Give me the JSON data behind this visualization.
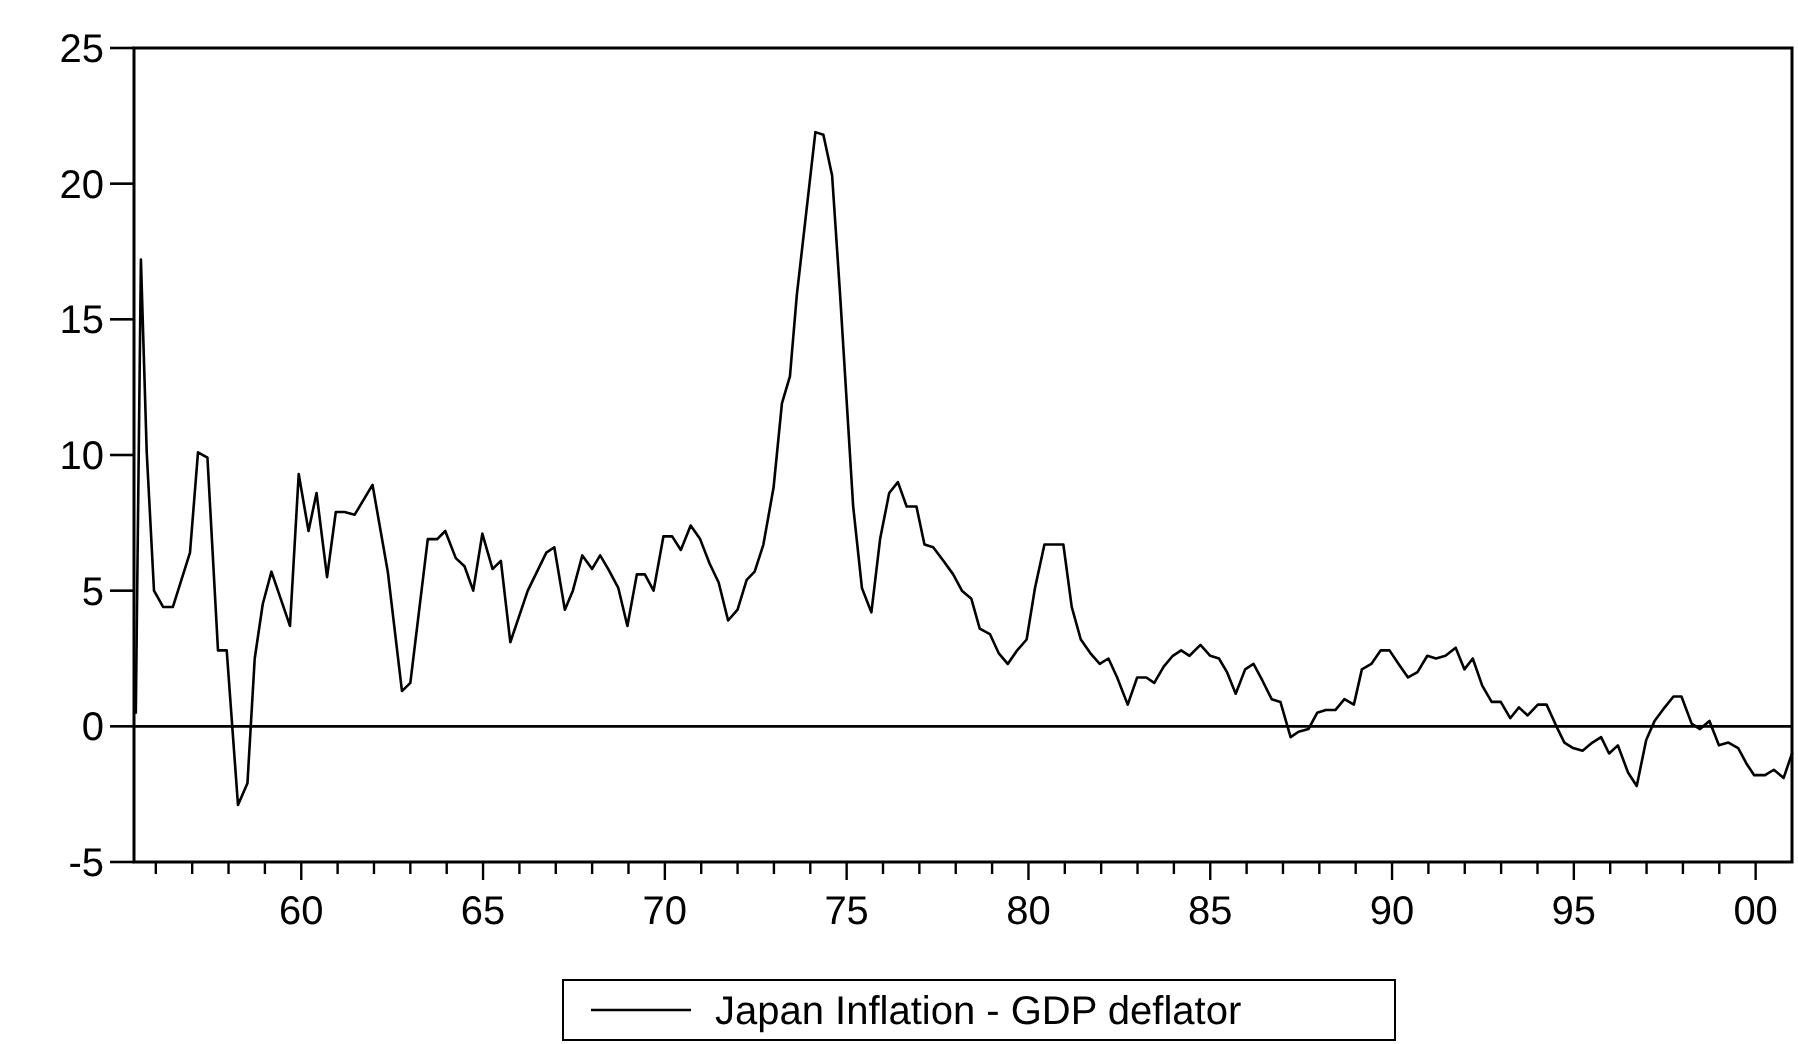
{
  "chart_data": {
    "type": "line",
    "legend": "bottom",
    "grid": false,
    "marker": "none",
    "line_style": "solid",
    "xlim": [
      1955.4,
      2001.0
    ],
    "ylim": [
      -5,
      25
    ],
    "yticks": [
      -5,
      0,
      5,
      10,
      15,
      20,
      25
    ],
    "xticks": [
      {
        "value": 1956,
        "label": null
      },
      {
        "value": 1957,
        "label": null
      },
      {
        "value": 1958,
        "label": null
      },
      {
        "value": 1959,
        "label": null
      },
      {
        "value": 1960,
        "label": "60"
      },
      {
        "value": 1961,
        "label": null
      },
      {
        "value": 1962,
        "label": null
      },
      {
        "value": 1963,
        "label": null
      },
      {
        "value": 1964,
        "label": null
      },
      {
        "value": 1965,
        "label": "65"
      },
      {
        "value": 1966,
        "label": null
      },
      {
        "value": 1967,
        "label": null
      },
      {
        "value": 1968,
        "label": null
      },
      {
        "value": 1969,
        "label": null
      },
      {
        "value": 1970,
        "label": "70"
      },
      {
        "value": 1971,
        "label": null
      },
      {
        "value": 1972,
        "label": null
      },
      {
        "value": 1973,
        "label": null
      },
      {
        "value": 1974,
        "label": null
      },
      {
        "value": 1975,
        "label": "75"
      },
      {
        "value": 1976,
        "label": null
      },
      {
        "value": 1977,
        "label": null
      },
      {
        "value": 1978,
        "label": null
      },
      {
        "value": 1979,
        "label": null
      },
      {
        "value": 1980,
        "label": "80"
      },
      {
        "value": 1981,
        "label": null
      },
      {
        "value": 1982,
        "label": null
      },
      {
        "value": 1983,
        "label": null
      },
      {
        "value": 1984,
        "label": null
      },
      {
        "value": 1985,
        "label": "85"
      },
      {
        "value": 1986,
        "label": null
      },
      {
        "value": 1987,
        "label": null
      },
      {
        "value": 1988,
        "label": null
      },
      {
        "value": 1989,
        "label": null
      },
      {
        "value": 1990,
        "label": "90"
      },
      {
        "value": 1991,
        "label": null
      },
      {
        "value": 1992,
        "label": null
      },
      {
        "value": 1993,
        "label": null
      },
      {
        "value": 1994,
        "label": null
      },
      {
        "value": 1995,
        "label": "95"
      },
      {
        "value": 1996,
        "label": null
      },
      {
        "value": 1997,
        "label": null
      },
      {
        "value": 1998,
        "label": null
      },
      {
        "value": 1999,
        "label": null
      },
      {
        "value": 2000,
        "label": "00"
      }
    ],
    "ref_lines": [
      {
        "axis": "y",
        "value": 0,
        "color": "#000000"
      }
    ],
    "series": [
      {
        "name": "Japan Inflation - GDP deflator",
        "color": "#000000",
        "x": [
          1955.45,
          1955.59,
          1955.75,
          1955.95,
          1956.2,
          1956.47,
          1956.94,
          1957.16,
          1957.42,
          1957.71,
          1957.95,
          1958.26,
          1958.52,
          1958.72,
          1958.94,
          1959.18,
          1959.69,
          1959.93,
          1960.2,
          1960.42,
          1960.71,
          1960.95,
          1961.19,
          1961.47,
          1961.96,
          1962.38,
          1962.77,
          1963.0,
          1963.48,
          1963.74,
          1963.96,
          1964.25,
          1964.49,
          1964.73,
          1964.98,
          1965.26,
          1965.49,
          1965.75,
          1966.23,
          1966.74,
          1966.96,
          1967.25,
          1967.47,
          1967.73,
          1968.0,
          1968.22,
          1968.44,
          1968.72,
          1968.97,
          1969.23,
          1969.45,
          1969.69,
          1969.96,
          1970.2,
          1970.44,
          1970.71,
          1970.97,
          1971.23,
          1971.48,
          1971.74,
          1972.0,
          1972.25,
          1972.47,
          1972.71,
          1972.99,
          1973.22,
          1973.44,
          1973.63,
          1973.86,
          1974.14,
          1974.36,
          1974.6,
          1974.82,
          1975.18,
          1975.42,
          1975.68,
          1975.92,
          1976.17,
          1976.41,
          1976.65,
          1976.92,
          1977.14,
          1977.38,
          1977.66,
          1977.93,
          1978.17,
          1978.43,
          1978.66,
          1978.94,
          1979.18,
          1979.43,
          1979.69,
          1979.95,
          1980.18,
          1980.44,
          1980.7,
          1980.96,
          1981.19,
          1981.44,
          1981.7,
          1981.96,
          1982.2,
          1982.44,
          1982.73,
          1982.99,
          1983.24,
          1983.46,
          1983.72,
          1983.97,
          1984.2,
          1984.43,
          1984.73,
          1985.0,
          1985.24,
          1985.46,
          1985.7,
          1985.96,
          1986.19,
          1986.43,
          1986.69,
          1986.93,
          1987.21,
          1987.43,
          1987.7,
          1987.94,
          1988.18,
          1988.44,
          1988.69,
          1988.95,
          1989.17,
          1989.43,
          1989.69,
          1989.93,
          1990.18,
          1990.44,
          1990.7,
          1990.97,
          1991.21,
          1991.47,
          1991.75,
          1991.99,
          1992.22,
          1992.48,
          1992.74,
          1992.99,
          1993.25,
          1993.49,
          1993.73,
          1994.01,
          1994.25,
          1994.52,
          1994.74,
          1994.98,
          1995.24,
          1995.51,
          1995.75,
          1995.97,
          1996.21,
          1996.49,
          1996.73,
          1996.99,
          1997.22,
          1997.5,
          1997.74,
          1997.96,
          1998.24,
          1998.47,
          1998.73,
          1998.99,
          1999.25,
          1999.52,
          1999.76,
          1999.96,
          2000.26,
          2000.5,
          2000.77,
          2001.0
        ],
        "values": [
          0.5,
          17.2,
          10.1,
          5.0,
          4.4,
          4.4,
          6.4,
          10.1,
          9.9,
          2.8,
          2.8,
          -2.9,
          -2.1,
          2.5,
          4.5,
          5.7,
          3.7,
          9.3,
          7.2,
          8.6,
          5.5,
          7.9,
          7.9,
          7.8,
          8.9,
          5.7,
          1.3,
          1.6,
          6.9,
          6.9,
          7.2,
          6.2,
          5.9,
          5.0,
          7.1,
          5.8,
          6.1,
          3.1,
          5.0,
          6.4,
          6.6,
          4.3,
          5.0,
          6.3,
          5.8,
          6.3,
          5.8,
          5.1,
          3.7,
          5.6,
          5.6,
          5.0,
          7.0,
          7.0,
          6.5,
          7.4,
          6.9,
          6.0,
          5.3,
          3.9,
          4.3,
          5.4,
          5.7,
          6.7,
          8.8,
          11.9,
          12.9,
          15.9,
          18.6,
          21.9,
          21.8,
          20.3,
          15.9,
          8.1,
          5.1,
          4.2,
          6.9,
          8.6,
          9.0,
          8.1,
          8.1,
          6.7,
          6.6,
          6.1,
          5.6,
          5.0,
          4.7,
          3.6,
          3.4,
          2.7,
          2.3,
          2.8,
          3.2,
          5.1,
          6.7,
          6.7,
          6.7,
          4.4,
          3.2,
          2.7,
          2.3,
          2.5,
          1.8,
          0.8,
          1.8,
          1.8,
          1.6,
          2.2,
          2.6,
          2.8,
          2.6,
          3.0,
          2.6,
          2.5,
          2.0,
          1.2,
          2.1,
          2.3,
          1.7,
          1.0,
          0.9,
          -0.4,
          -0.2,
          -0.1,
          0.5,
          0.6,
          0.6,
          1.0,
          0.8,
          2.1,
          2.3,
          2.8,
          2.8,
          2.3,
          1.8,
          2.0,
          2.6,
          2.5,
          2.6,
          2.9,
          2.1,
          2.5,
          1.5,
          0.9,
          0.9,
          0.3,
          0.7,
          0.4,
          0.8,
          0.8,
          0.0,
          -0.6,
          -0.8,
          -0.9,
          -0.6,
          -0.4,
          -1.0,
          -0.7,
          -1.7,
          -2.2,
          -0.5,
          0.2,
          0.7,
          1.1,
          1.1,
          0.1,
          -0.1,
          0.2,
          -0.7,
          -0.6,
          -0.8,
          -1.4,
          -1.8,
          -1.8,
          -1.6,
          -1.9,
          -1.0
        ]
      }
    ]
  }
}
